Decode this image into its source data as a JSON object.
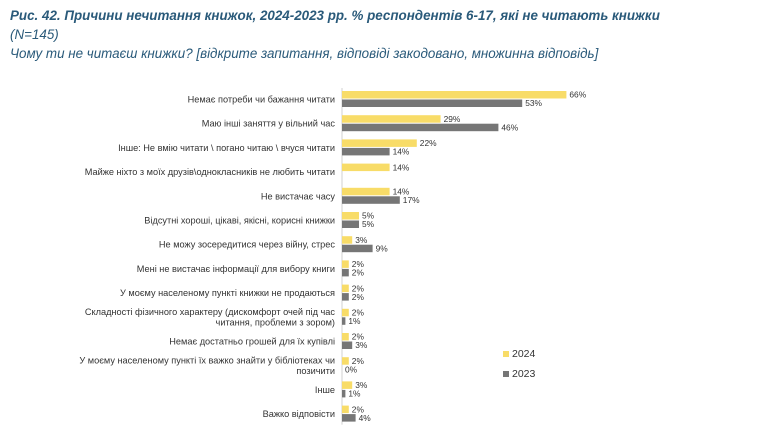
{
  "heading": {
    "title": "Рис. 42. Причини нечитання книжок, 2024-2023 рр. % респондентів 6-17, які не читають книжки",
    "n": "(N=145)",
    "subtitle": "Чому ти не читаєш книжки? [відкрите запитання, відповіді закодовано, множинна відповідь]"
  },
  "colors": {
    "series2024": "#f8dc68",
    "series2023": "#767676",
    "text": "#333333",
    "axis": "#d0d0d0"
  },
  "chart_data": {
    "type": "bar",
    "orientation": "horizontal",
    "categories": [
      [
        "Немає потреби чи бажання читати"
      ],
      [
        "Маю інші заняття у вільний час"
      ],
      [
        "Інше: Не вмію читати \\ погано читаю \\ вчуся читати"
      ],
      [
        "Майже ніхто з моїх друзів\\однокласників не любить читати"
      ],
      [
        "Не вистачає часу"
      ],
      [
        "Відсутні хороші, цікаві, якісні, корисні книжки"
      ],
      [
        "Не можу зосередитися через війну, стрес"
      ],
      [
        "Мені не вистачає інформації для вибору книги"
      ],
      [
        "У моєму населеному пункті книжки не продаються"
      ],
      [
        "Складності фізичного характеру (дискомфорт очей під час",
        "читання, проблеми з зором)"
      ],
      [
        "Немає достатньо грошей для їх купівлі"
      ],
      [
        "У моєму населеному пункті їх важко знайти у бібліотеках чи",
        "позичити"
      ],
      [
        "Інше"
      ],
      [
        "Важко відповісти"
      ]
    ],
    "series": [
      {
        "name": "2024",
        "values": [
          66,
          29,
          22,
          14,
          14,
          5,
          3,
          2,
          2,
          2,
          2,
          2,
          3,
          2
        ]
      },
      {
        "name": "2023",
        "values": [
          53,
          46,
          14,
          null,
          17,
          5,
          9,
          2,
          2,
          1,
          3,
          0,
          1,
          4
        ]
      }
    ],
    "value_suffix": "%",
    "legend": "bottom-right"
  }
}
